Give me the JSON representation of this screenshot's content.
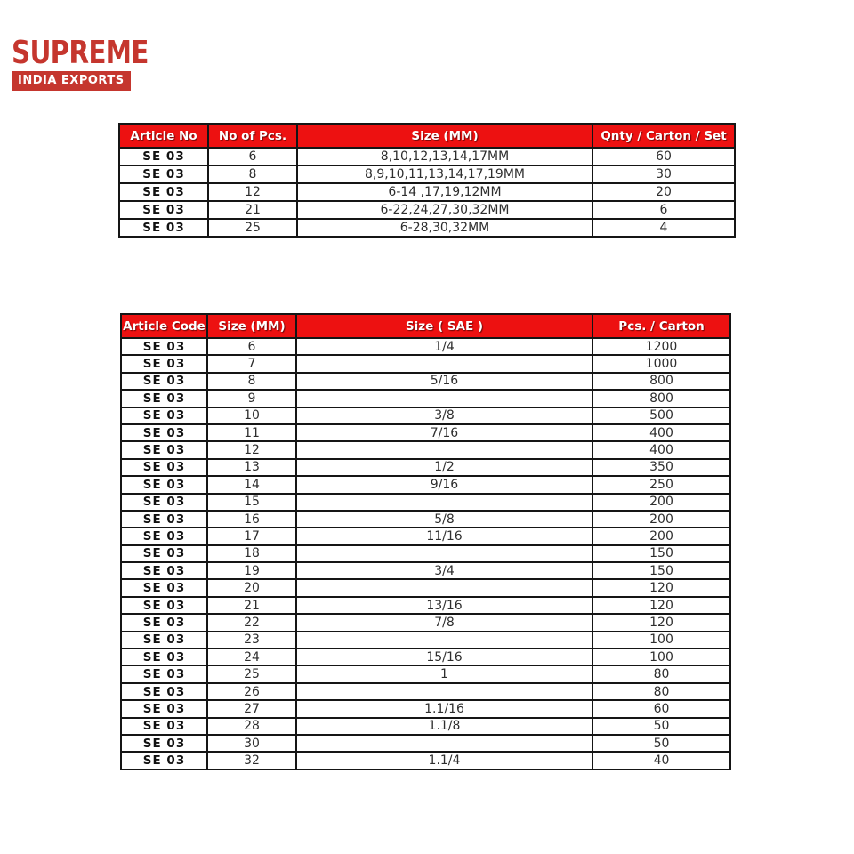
{
  "logo": {
    "title": "SUPREME",
    "subtitle": "INDIA EXPORTS",
    "brand_color": "#c5362e"
  },
  "colors": {
    "table_header_bg": "#ed1111",
    "table_header_text": "#ffffff",
    "table_border": "#151515",
    "page_bg": "#ffffff"
  },
  "set_table": {
    "headers": [
      "Article No",
      "No of Pcs.",
      "Size (MM)",
      "Qnty / Carton / Set"
    ],
    "rows": [
      [
        "SE 03",
        "6",
        "8,10,12,13,14,17MM",
        "60"
      ],
      [
        "SE 03",
        "8",
        "8,9,10,11,13,14,17,19MM",
        "30"
      ],
      [
        "SE 03",
        "12",
        "6-14 ,17,19,12MM",
        "20"
      ],
      [
        "SE 03",
        "21",
        "6-22,24,27,30,32MM",
        "6"
      ],
      [
        "SE 03",
        "25",
        "6-28,30,32MM",
        "4"
      ]
    ]
  },
  "size_table": {
    "headers": [
      "Article Code",
      "Size (MM)",
      "Size ( SAE )",
      "Pcs. / Carton"
    ],
    "rows": [
      [
        "SE 03",
        "6",
        "1/4",
        "1200"
      ],
      [
        "SE 03",
        "7",
        "",
        "1000"
      ],
      [
        "SE 03",
        "8",
        "5/16",
        "800"
      ],
      [
        "SE 03",
        "9",
        "",
        "800"
      ],
      [
        "SE 03",
        "10",
        "3/8",
        "500"
      ],
      [
        "SE 03",
        "11",
        "7/16",
        "400"
      ],
      [
        "SE 03",
        "12",
        "",
        "400"
      ],
      [
        "SE 03",
        "13",
        "1/2",
        "350"
      ],
      [
        "SE 03",
        "14",
        "9/16",
        "250"
      ],
      [
        "SE 03",
        "15",
        "",
        "200"
      ],
      [
        "SE 03",
        "16",
        "5/8",
        "200"
      ],
      [
        "SE 03",
        "17",
        "11/16",
        "200"
      ],
      [
        "SE 03",
        "18",
        "",
        "150"
      ],
      [
        "SE 03",
        "19",
        "3/4",
        "150"
      ],
      [
        "SE 03",
        "20",
        "",
        "120"
      ],
      [
        "SE 03",
        "21",
        "13/16",
        "120"
      ],
      [
        "SE 03",
        "22",
        "7/8",
        "120"
      ],
      [
        "SE 03",
        "23",
        "",
        "100"
      ],
      [
        "SE 03",
        "24",
        "15/16",
        "100"
      ],
      [
        "SE 03",
        "25",
        "1",
        "80"
      ],
      [
        "SE 03",
        "26",
        "",
        "80"
      ],
      [
        "SE 03",
        "27",
        "1.1/16",
        "60"
      ],
      [
        "SE 03",
        "28",
        "1.1/8",
        "50"
      ],
      [
        "SE 03",
        "30",
        "",
        "50"
      ],
      [
        "SE 03",
        "32",
        "1.1/4",
        "40"
      ]
    ]
  }
}
